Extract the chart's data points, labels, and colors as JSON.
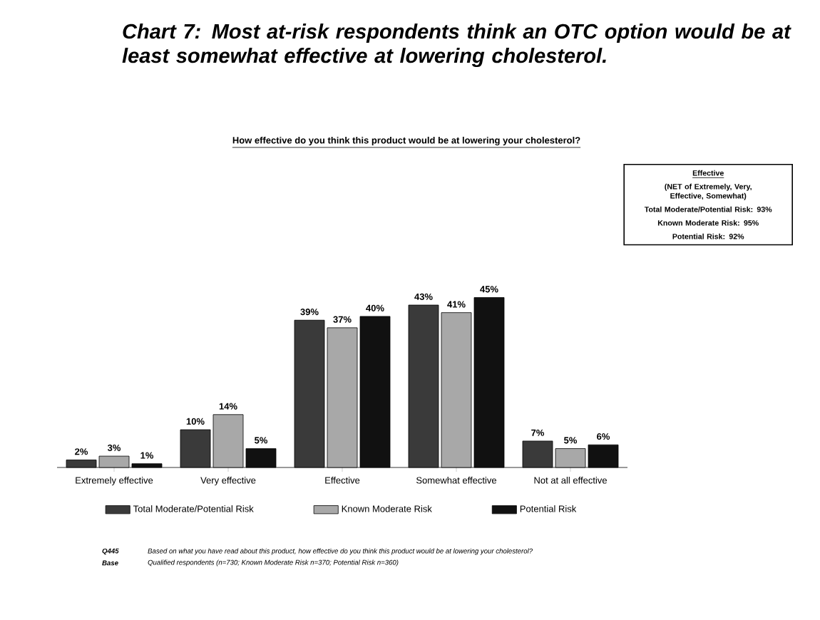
{
  "chart_data": {
    "type": "bar",
    "title": "Chart 7: Most at-risk respondents think an OTC option would be at least somewhat effective at lowering cholesterol.",
    "subtitle": "How effective do you think this product would be at lowering your cholesterol?",
    "categories": [
      "Extremely effective",
      "Very effective",
      "Effective",
      "Somewhat effective",
      "Not at all effective"
    ],
    "series": [
      {
        "name": "Total Moderate/Potential Risk",
        "color": "#3a3a3a",
        "values": [
          2,
          10,
          39,
          43,
          7
        ],
        "value_labels": [
          "2%",
          "10%",
          "39%",
          "43%",
          "7%"
        ]
      },
      {
        "name": "Known Moderate Risk",
        "color": "#a8a8a8",
        "values": [
          3,
          14,
          37,
          41,
          5
        ],
        "value_labels": [
          "3%",
          "14%",
          "37%",
          "41%",
          "5%"
        ]
      },
      {
        "name": "Potential Risk",
        "color": "#111111",
        "values": [
          1,
          5,
          40,
          45,
          6
        ],
        "value_labels": [
          "1%",
          "5%",
          "40%",
          "45%",
          "6%"
        ]
      }
    ],
    "legend": "bottom",
    "annotations": [
      "Effective",
      "(NET of Extremely, Very, Effective, Somewhat)",
      "Total Moderate/Potential Risk: 93%",
      "Known Moderate Risk: 95%",
      "Potential Risk: 92%",
      "Q445",
      "Based on what you have read about this product, how effective do you think this product would be at lowering your cholesterol?",
      "Base",
      "Qualified respondents (n=730; Known Moderate Risk n=370; Potential Risk n=360)"
    ]
  }
}
